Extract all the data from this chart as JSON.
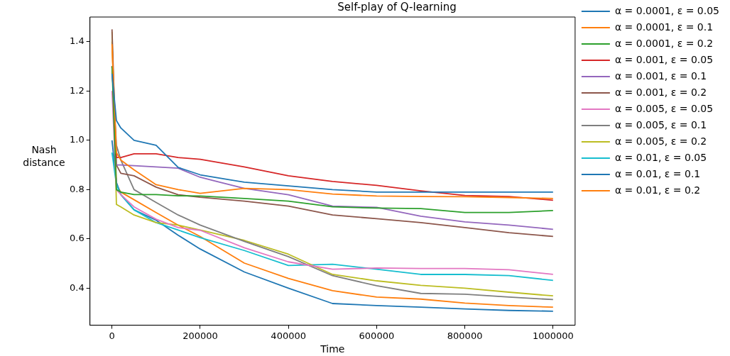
{
  "chart_data": {
    "type": "line",
    "title": "Self-play of Q-learning",
    "xlabel": "Time",
    "ylabel": "Nash distance",
    "x": [
      0,
      10000,
      20000,
      50000,
      100000,
      150000,
      200000,
      300000,
      400000,
      500000,
      600000,
      700000,
      800000,
      900000,
      1000000
    ],
    "xlim": [
      -50000,
      1050000
    ],
    "xticks": [
      0,
      200000,
      400000,
      600000,
      800000,
      1000000
    ],
    "ylim": [
      0.25,
      1.5
    ],
    "yticks": [
      {
        "value": 0.4,
        "label": "0.4"
      },
      {
        "value": 0.6,
        "label": "0.6"
      },
      {
        "value": 0.8,
        "label": "0.8"
      },
      {
        "value": 1.0,
        "label": "1.0"
      },
      {
        "value": 1.2,
        "label": "1.2"
      },
      {
        "value": 1.4,
        "label": "1.4"
      }
    ],
    "grid": false,
    "legend": "top right",
    "marker": "none",
    "line_style": "solid",
    "series": [
      {
        "name": "α = 0.0001, ε = 0.05",
        "color": "#1f77b4",
        "values": [
          1.27,
          1.08,
          1.05,
          1.0,
          0.98,
          0.89,
          0.86,
          0.83,
          0.815,
          0.8,
          0.79,
          0.79,
          0.79,
          0.79,
          0.79
        ]
      },
      {
        "name": "α = 0.0001, ε = 0.1",
        "color": "#ff7f0e",
        "values": [
          1.39,
          0.95,
          0.92,
          0.88,
          0.82,
          0.8,
          0.785,
          0.805,
          0.8,
          0.782,
          0.774,
          0.772,
          0.771,
          0.768,
          0.764
        ]
      },
      {
        "name": "α = 0.0001, ε = 0.2",
        "color": "#2ca02c",
        "values": [
          1.3,
          0.8,
          0.79,
          0.78,
          0.78,
          0.775,
          0.774,
          0.764,
          0.753,
          0.73,
          0.725,
          0.723,
          0.707,
          0.707,
          0.715
        ]
      },
      {
        "name": "α = 0.001, ε = 0.05",
        "color": "#d62728",
        "values": [
          1.3,
          0.93,
          0.93,
          0.945,
          0.945,
          0.93,
          0.923,
          0.892,
          0.856,
          0.833,
          0.817,
          0.795,
          0.776,
          0.772,
          0.757
        ]
      },
      {
        "name": "α = 0.001, ε = 0.1",
        "color": "#9467bd",
        "values": [
          null,
          0.9,
          0.9,
          0.897,
          0.892,
          0.887,
          0.85,
          0.805,
          0.779,
          0.733,
          0.728,
          0.692,
          0.669,
          0.656,
          0.639
        ]
      },
      {
        "name": "α = 0.001, ε = 0.2",
        "color": "#8c564b",
        "values": [
          1.45,
          0.9,
          0.866,
          0.856,
          0.81,
          0.779,
          0.769,
          0.753,
          0.733,
          0.697,
          0.682,
          0.666,
          0.646,
          0.625,
          0.61
        ]
      },
      {
        "name": "α = 0.005, ε = 0.05",
        "color": "#e377c2",
        "values": [
          1.2,
          0.8,
          0.78,
          0.73,
          0.68,
          0.646,
          0.635,
          0.564,
          0.507,
          0.477,
          0.482,
          0.48,
          0.48,
          0.475,
          0.456
        ]
      },
      {
        "name": "α = 0.005, ε = 0.1",
        "color": "#7f7f7f",
        "values": [
          1.3,
          0.98,
          0.92,
          0.8,
          0.748,
          0.697,
          0.656,
          0.59,
          0.528,
          0.451,
          0.41,
          0.379,
          0.376,
          0.364,
          0.354
        ]
      },
      {
        "name": "α = 0.005, ε = 0.2",
        "color": "#bcbd22",
        "values": [
          1.44,
          0.74,
          0.73,
          0.697,
          0.666,
          0.656,
          0.636,
          0.594,
          0.538,
          0.456,
          0.43,
          0.412,
          0.4,
          0.384,
          0.369
        ]
      },
      {
        "name": "α = 0.01, ε = 0.05",
        "color": "#17becf",
        "values": [
          0.95,
          0.82,
          0.78,
          0.718,
          0.666,
          0.636,
          0.605,
          0.553,
          0.492,
          0.497,
          0.477,
          0.456,
          0.456,
          0.451,
          0.432
        ]
      },
      {
        "name": "α = 0.01, ε = 0.1",
        "color": "#1f77b4",
        "values": [
          1.0,
          0.83,
          0.78,
          0.718,
          0.676,
          0.615,
          0.559,
          0.466,
          0.4,
          0.338,
          0.33,
          0.323,
          0.316,
          0.31,
          0.307
        ]
      },
      {
        "name": "α = 0.01, ε = 0.2",
        "color": "#ff7f0e",
        "values": [
          1.4,
          0.82,
          0.79,
          0.759,
          0.707,
          0.656,
          0.61,
          0.502,
          0.44,
          0.39,
          0.364,
          0.356,
          0.34,
          0.33,
          0.323
        ]
      }
    ]
  }
}
